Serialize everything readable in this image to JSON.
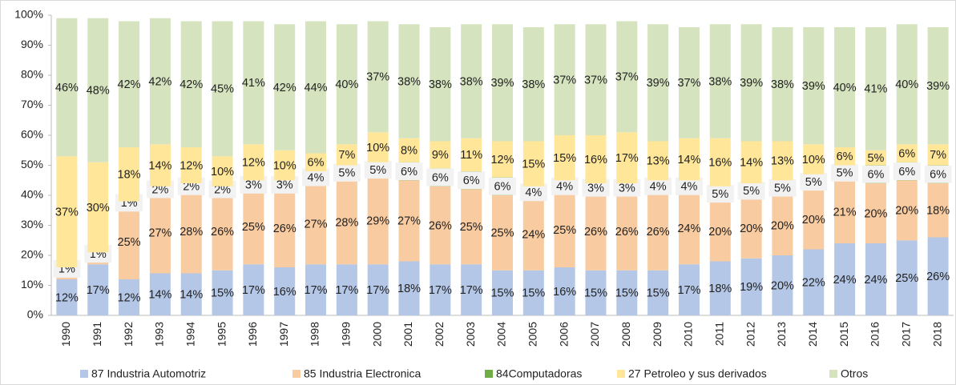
{
  "chart_data": {
    "type": "stacked_bar",
    "categories": [
      "1990",
      "1991",
      "1992",
      "1993",
      "1994",
      "1995",
      "1996",
      "1997",
      "1998",
      "1999",
      "2000",
      "2001",
      "2002",
      "2003",
      "2004",
      "2005",
      "2006",
      "2007",
      "2008",
      "2009",
      "2010",
      "2011",
      "2012",
      "2013",
      "2014",
      "2015",
      "2016",
      "2017",
      "2018"
    ],
    "ylim": [
      0,
      100
    ],
    "yticks": [
      {
        "value": 0,
        "label": "0%"
      },
      {
        "value": 10,
        "label": "10%"
      },
      {
        "value": 20,
        "label": "20%"
      },
      {
        "value": 30,
        "label": "30%"
      },
      {
        "value": 40,
        "label": "40%"
      },
      {
        "value": 50,
        "label": "50%"
      },
      {
        "value": 60,
        "label": "60%"
      },
      {
        "value": 70,
        "label": "70%"
      },
      {
        "value": 80,
        "label": "80%"
      },
      {
        "value": 90,
        "label": "90%"
      },
      {
        "value": 100,
        "label": "100%"
      }
    ],
    "legend": "bottom",
    "series": [
      {
        "name": "87  Industria Automotriz",
        "color": "#b4c7e7",
        "values": [
          12,
          17,
          12,
          14,
          14,
          15,
          17,
          16,
          17,
          17,
          17,
          18,
          17,
          17,
          15,
          15,
          16,
          15,
          15,
          15,
          17,
          18,
          19,
          20,
          22,
          24,
          24,
          25,
          26
        ],
        "value_labels": [
          "12%",
          "17%",
          "12%",
          "14%",
          "14%",
          "15%",
          "17%",
          "16%",
          "17%",
          "17%",
          "17%",
          "18%",
          "17%",
          "17%",
          "15%",
          "15%",
          "16%",
          "15%",
          "15%",
          "15%",
          "17%",
          "18%",
          "19%",
          "20%",
          "22%",
          "24%",
          "24%",
          "25%",
          "26%"
        ]
      },
      {
        "name": "85 Industria Electronica",
        "color": "#f8cba0",
        "values": [
          3,
          3,
          25,
          27,
          28,
          26,
          25,
          26,
          27,
          28,
          29,
          27,
          26,
          25,
          25,
          24,
          25,
          26,
          26,
          26,
          24,
          20,
          20,
          20,
          20,
          21,
          20,
          20,
          18
        ],
        "value_labels": [
          null,
          null,
          "25%",
          "27%",
          "28%",
          "26%",
          "25%",
          "26%",
          "27%",
          "28%",
          "29%",
          "27%",
          "26%",
          "25%",
          "25%",
          "24%",
          "25%",
          "26%",
          "26%",
          "26%",
          "24%",
          "20%",
          "20%",
          "20%",
          "20%",
          "21%",
          "20%",
          "20%",
          "18%"
        ]
      },
      {
        "name": "84Computadoras",
        "color": "#70ad47",
        "values": [
          1,
          1,
          1,
          2,
          2,
          2,
          3,
          3,
          4,
          5,
          5,
          6,
          6,
          6,
          6,
          4,
          4,
          3,
          3,
          4,
          4,
          5,
          5,
          5,
          5,
          5,
          6,
          6,
          6
        ],
        "value_labels": [
          "1%",
          "1%",
          "1%",
          "2%",
          "2%",
          "2%",
          "3%",
          "3%",
          "4%",
          "5%",
          "5%",
          "6%",
          "6%",
          "6%",
          "6%",
          "4%",
          "4%",
          "3%",
          "3%",
          "4%",
          "4%",
          "5%",
          "5%",
          "5%",
          "5%",
          "5%",
          "6%",
          "6%",
          "6%"
        ]
      },
      {
        "name": "27 Petroleo y sus derivados",
        "color": "#ffe699",
        "values": [
          37,
          30,
          18,
          14,
          12,
          10,
          12,
          10,
          6,
          7,
          10,
          8,
          9,
          11,
          12,
          15,
          15,
          16,
          17,
          13,
          14,
          16,
          14,
          13,
          10,
          6,
          5,
          6,
          7
        ],
        "value_labels": [
          "37%",
          "30%",
          "18%",
          "14%",
          "12%",
          "10%",
          "12%",
          "10%",
          "6%",
          "7%",
          "10%",
          "8%",
          "9%",
          "11%",
          "12%",
          "15%",
          "15%",
          "16%",
          "17%",
          "13%",
          "14%",
          "16%",
          "14%",
          "13%",
          "10%",
          "6%",
          "5%",
          "6%",
          "7%"
        ]
      },
      {
        "name": "Otros",
        "color": "#d5e3bf",
        "values": [
          46,
          48,
          42,
          42,
          42,
          45,
          41,
          42,
          44,
          40,
          37,
          38,
          38,
          38,
          39,
          38,
          37,
          37,
          37,
          39,
          37,
          38,
          39,
          38,
          39,
          40,
          41,
          40,
          39
        ],
        "value_labels": [
          "46%",
          "48%",
          "42%",
          "42%",
          "42%",
          "45%",
          "41%",
          "42%",
          "44%",
          "40%",
          "37%",
          "38%",
          "38%",
          "38%",
          "39%",
          "38%",
          "37%",
          "37%",
          "37%",
          "39%",
          "37%",
          "38%",
          "39%",
          "38%",
          "39%",
          "40%",
          "41%",
          "40%",
          "39%"
        ]
      }
    ]
  }
}
